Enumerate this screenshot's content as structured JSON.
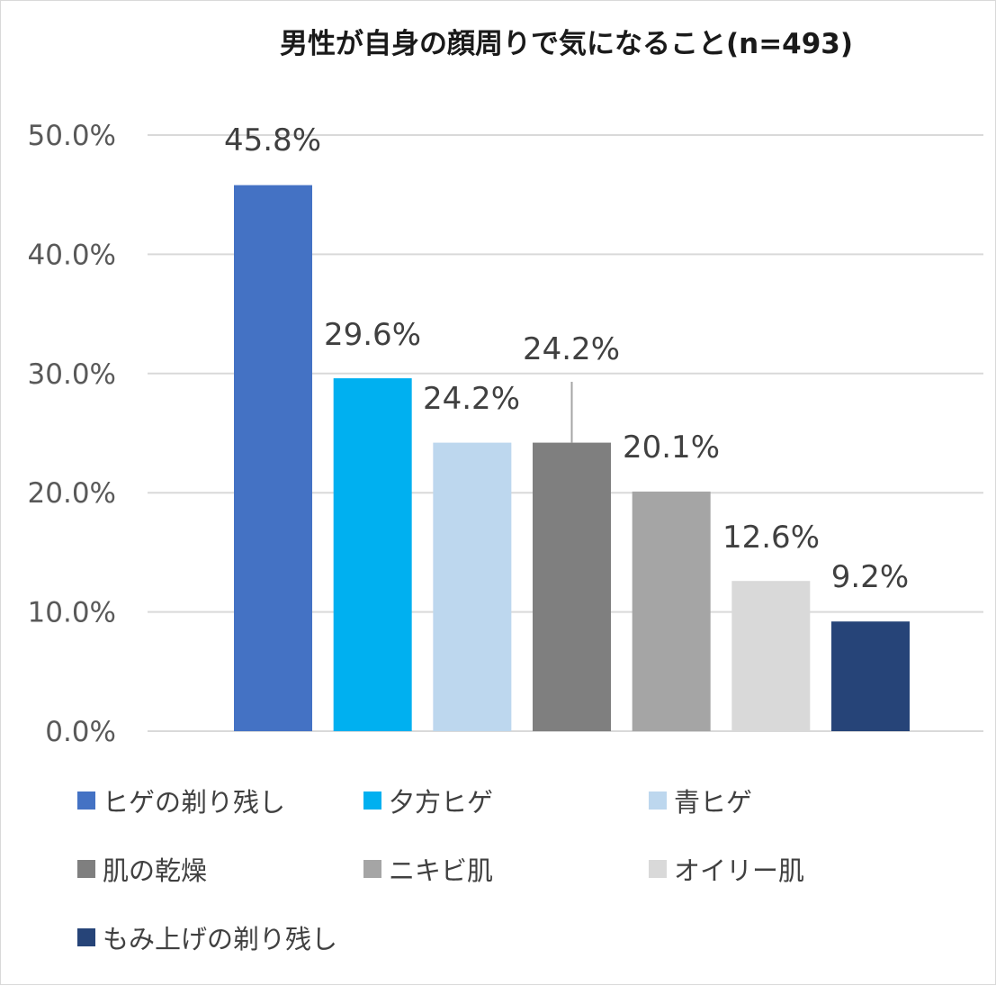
{
  "chart_data": {
    "type": "bar",
    "title": "男性が自身の顔周りで気になること(n=493)",
    "categories": [
      "ヒゲの剃り残し",
      "夕方ヒゲ",
      "青ヒゲ",
      "肌の乾燥",
      "ニキビ肌",
      "オイリー肌",
      "もみ上げの剃り残し"
    ],
    "values": [
      45.8,
      29.6,
      24.2,
      24.2,
      20.1,
      12.6,
      9.2
    ],
    "data_labels": [
      "45.8%",
      "29.6%",
      "24.2%",
      "24.2%",
      "20.1%",
      "12.6%",
      "9.2%"
    ],
    "colors": [
      "#4472C4",
      "#00B0F0",
      "#BDD7EE",
      "#7F7F7F",
      "#A5A5A5",
      "#D9D9D9",
      "#264478"
    ],
    "ylim": [
      0,
      50
    ],
    "yticks": [
      "0.0%",
      "10.0%",
      "20.0%",
      "30.0%",
      "40.0%",
      "50.0%"
    ],
    "grid": true,
    "legend_position": "bottom",
    "xlabel": "",
    "ylabel": ""
  }
}
